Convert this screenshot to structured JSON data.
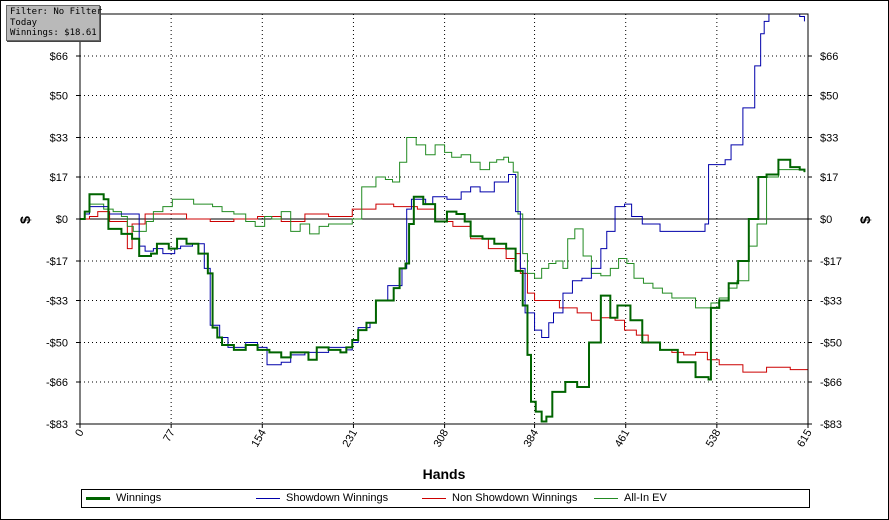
{
  "info_box": {
    "line1": "Filter: No Filter",
    "line2": "Today",
    "line3": "Winnings: $18.61"
  },
  "chart_data": {
    "type": "line",
    "xlabel": "Hands",
    "ylabel": "$",
    "xlim": [
      0,
      615
    ],
    "ylim": [
      -83,
      83
    ],
    "x_ticks": [
      0,
      77,
      154,
      231,
      308,
      384,
      461,
      538,
      615
    ],
    "y_ticks": [
      {
        "value": -83,
        "label": "-$83"
      },
      {
        "value": -66,
        "label": "-$66"
      },
      {
        "value": -50,
        "label": "-$50"
      },
      {
        "value": -33,
        "label": "-$33"
      },
      {
        "value": -17,
        "label": "-$17"
      },
      {
        "value": 0,
        "label": "$0"
      },
      {
        "value": 17,
        "label": "$17"
      },
      {
        "value": 33,
        "label": "$33"
      },
      {
        "value": 50,
        "label": "$50"
      },
      {
        "value": 66,
        "label": "$66"
      }
    ],
    "grid": true,
    "legend_position": "bottom",
    "series": [
      {
        "name": "Winnings",
        "color": "#006400",
        "width": 2,
        "points": [
          [
            0,
            0
          ],
          [
            4,
            3
          ],
          [
            8,
            10
          ],
          [
            20,
            8
          ],
          [
            24,
            -4
          ],
          [
            35,
            -6
          ],
          [
            44,
            -8
          ],
          [
            50,
            -15
          ],
          [
            60,
            -14
          ],
          [
            65,
            -10
          ],
          [
            75,
            -12
          ],
          [
            82,
            -8
          ],
          [
            90,
            -10
          ],
          [
            100,
            -14
          ],
          [
            108,
            -22
          ],
          [
            112,
            -44
          ],
          [
            116,
            -48
          ],
          [
            120,
            -51
          ],
          [
            130,
            -53
          ],
          [
            140,
            -51
          ],
          [
            150,
            -53
          ],
          [
            160,
            -54
          ],
          [
            170,
            -56
          ],
          [
            178,
            -54
          ],
          [
            185,
            -54
          ],
          [
            193,
            -57
          ],
          [
            200,
            -52
          ],
          [
            210,
            -53
          ],
          [
            220,
            -54
          ],
          [
            225,
            -52
          ],
          [
            230,
            -49
          ],
          [
            235,
            -45
          ],
          [
            242,
            -42
          ],
          [
            250,
            -33
          ],
          [
            265,
            -28
          ],
          [
            270,
            -20
          ],
          [
            275,
            -18
          ],
          [
            278,
            -2
          ],
          [
            282,
            9
          ],
          [
            290,
            6
          ],
          [
            300,
            -1
          ],
          [
            310,
            3
          ],
          [
            318,
            2
          ],
          [
            325,
            -1
          ],
          [
            330,
            -7
          ],
          [
            340,
            -8
          ],
          [
            350,
            -10
          ],
          [
            360,
            -12
          ],
          [
            368,
            -21
          ],
          [
            374,
            -35
          ],
          [
            378,
            -55
          ],
          [
            381,
            -74
          ],
          [
            385,
            -78
          ],
          [
            390,
            -82
          ],
          [
            394,
            -80
          ],
          [
            399,
            -70
          ],
          [
            410,
            -66
          ],
          [
            420,
            -68
          ],
          [
            430,
            -50
          ],
          [
            440,
            -31
          ],
          [
            448,
            -40
          ],
          [
            454,
            -35
          ],
          [
            465,
            -41
          ],
          [
            475,
            -50
          ],
          [
            490,
            -53
          ],
          [
            505,
            -58
          ],
          [
            520,
            -64
          ],
          [
            531,
            -65
          ],
          [
            533,
            -36
          ],
          [
            540,
            -33
          ],
          [
            548,
            -26
          ],
          [
            556,
            -17
          ],
          [
            565,
            0
          ],
          [
            573,
            17
          ],
          [
            580,
            18
          ],
          [
            590,
            24
          ],
          [
            600,
            21
          ],
          [
            608,
            20
          ],
          [
            612,
            19
          ]
        ]
      },
      {
        "name": "Showdown Winnings",
        "color": "#0000aa",
        "width": 1,
        "points": [
          [
            0,
            0
          ],
          [
            4,
            2
          ],
          [
            8,
            5
          ],
          [
            20,
            5
          ],
          [
            24,
            2
          ],
          [
            44,
            2
          ],
          [
            50,
            -11
          ],
          [
            55,
            -13
          ],
          [
            62,
            -12
          ],
          [
            70,
            -14
          ],
          [
            80,
            -12
          ],
          [
            85,
            -11
          ],
          [
            95,
            -10
          ],
          [
            105,
            -20
          ],
          [
            110,
            -43
          ],
          [
            118,
            -48
          ],
          [
            125,
            -52
          ],
          [
            140,
            -50
          ],
          [
            150,
            -52
          ],
          [
            158,
            -59
          ],
          [
            170,
            -58
          ],
          [
            178,
            -55
          ],
          [
            190,
            -54
          ],
          [
            200,
            -54
          ],
          [
            210,
            -52
          ],
          [
            225,
            -53
          ],
          [
            230,
            -50
          ],
          [
            235,
            -44
          ],
          [
            245,
            -42
          ],
          [
            250,
            -33
          ],
          [
            260,
            -27
          ],
          [
            272,
            -20
          ],
          [
            276,
            4
          ],
          [
            280,
            8
          ],
          [
            292,
            6
          ],
          [
            298,
            9
          ],
          [
            310,
            8
          ],
          [
            322,
            11
          ],
          [
            330,
            13
          ],
          [
            338,
            11
          ],
          [
            350,
            15
          ],
          [
            362,
            18
          ],
          [
            368,
            3
          ],
          [
            372,
            -20
          ],
          [
            376,
            -38
          ],
          [
            384,
            -45
          ],
          [
            390,
            -48
          ],
          [
            396,
            -42
          ],
          [
            400,
            -38
          ],
          [
            408,
            -30
          ],
          [
            416,
            -25
          ],
          [
            424,
            -24
          ],
          [
            432,
            -20
          ],
          [
            440,
            -12
          ],
          [
            445,
            -5
          ],
          [
            452,
            5
          ],
          [
            460,
            6
          ],
          [
            466,
            1
          ],
          [
            475,
            -2
          ],
          [
            490,
            -5
          ],
          [
            505,
            -5
          ],
          [
            520,
            -5
          ],
          [
            528,
            -2
          ],
          [
            531,
            22
          ],
          [
            545,
            24
          ],
          [
            550,
            30
          ],
          [
            560,
            45
          ],
          [
            570,
            62
          ],
          [
            575,
            75
          ],
          [
            578,
            80
          ],
          [
            582,
            83
          ],
          [
            600,
            83
          ],
          [
            608,
            82
          ],
          [
            612,
            80
          ]
        ]
      },
      {
        "name": "Non Showdown Winnings",
        "color": "#cc0000",
        "width": 1,
        "points": [
          [
            0,
            0
          ],
          [
            8,
            1
          ],
          [
            15,
            3
          ],
          [
            25,
            -1
          ],
          [
            40,
            -12
          ],
          [
            44,
            -2
          ],
          [
            55,
            2
          ],
          [
            70,
            2
          ],
          [
            90,
            0
          ],
          [
            110,
            -1
          ],
          [
            130,
            0
          ],
          [
            150,
            1
          ],
          [
            170,
            -1
          ],
          [
            190,
            2
          ],
          [
            210,
            1
          ],
          [
            230,
            4
          ],
          [
            250,
            6
          ],
          [
            265,
            5
          ],
          [
            285,
            4
          ],
          [
            300,
            -1
          ],
          [
            315,
            -3
          ],
          [
            330,
            -8
          ],
          [
            345,
            -12
          ],
          [
            360,
            -16
          ],
          [
            368,
            -14
          ],
          [
            372,
            -22
          ],
          [
            378,
            -30
          ],
          [
            384,
            -33
          ],
          [
            395,
            -33
          ],
          [
            405,
            -36
          ],
          [
            420,
            -38
          ],
          [
            432,
            -41
          ],
          [
            440,
            -40
          ],
          [
            452,
            -41
          ],
          [
            460,
            -45
          ],
          [
            470,
            -47
          ],
          [
            480,
            -50
          ],
          [
            490,
            -53
          ],
          [
            500,
            -54
          ],
          [
            510,
            -55
          ],
          [
            520,
            -54
          ],
          [
            530,
            -57
          ],
          [
            540,
            -59
          ],
          [
            560,
            -62
          ],
          [
            580,
            -60
          ],
          [
            600,
            -61
          ],
          [
            615,
            -61
          ]
        ]
      },
      {
        "name": "All-In EV",
        "color": "#228b22",
        "width": 1,
        "points": [
          [
            0,
            0
          ],
          [
            4,
            2
          ],
          [
            8,
            6
          ],
          [
            20,
            4
          ],
          [
            28,
            3
          ],
          [
            35,
            1
          ],
          [
            40,
            -3
          ],
          [
            45,
            -5
          ],
          [
            50,
            -5
          ],
          [
            56,
            -1
          ],
          [
            62,
            3
          ],
          [
            70,
            5
          ],
          [
            78,
            8
          ],
          [
            88,
            8
          ],
          [
            96,
            6
          ],
          [
            104,
            6
          ],
          [
            112,
            5
          ],
          [
            120,
            3
          ],
          [
            130,
            2
          ],
          [
            140,
            -1
          ],
          [
            148,
            -3
          ],
          [
            156,
            1
          ],
          [
            162,
            0
          ],
          [
            170,
            3
          ],
          [
            178,
            -5
          ],
          [
            186,
            -2
          ],
          [
            194,
            -6
          ],
          [
            202,
            -3
          ],
          [
            210,
            -2
          ],
          [
            222,
            -2
          ],
          [
            230,
            0
          ],
          [
            238,
            13
          ],
          [
            250,
            17
          ],
          [
            258,
            16
          ],
          [
            264,
            15
          ],
          [
            270,
            23
          ],
          [
            276,
            33
          ],
          [
            284,
            30
          ],
          [
            292,
            26
          ],
          [
            300,
            30
          ],
          [
            308,
            27
          ],
          [
            314,
            25
          ],
          [
            322,
            26
          ],
          [
            330,
            23
          ],
          [
            338,
            20
          ],
          [
            346,
            23
          ],
          [
            352,
            24
          ],
          [
            358,
            25
          ],
          [
            362,
            23
          ],
          [
            366,
            19
          ],
          [
            370,
            2
          ],
          [
            374,
            -14
          ],
          [
            378,
            -22
          ],
          [
            384,
            -24
          ],
          [
            390,
            -20
          ],
          [
            396,
            -18
          ],
          [
            402,
            -17
          ],
          [
            408,
            -20
          ],
          [
            412,
            -8
          ],
          [
            418,
            -4
          ],
          [
            425,
            -15
          ],
          [
            432,
            -22
          ],
          [
            440,
            -23
          ],
          [
            448,
            -20
          ],
          [
            455,
            -16
          ],
          [
            462,
            -18
          ],
          [
            468,
            -24
          ],
          [
            476,
            -26
          ],
          [
            484,
            -28
          ],
          [
            492,
            -30
          ],
          [
            500,
            -32
          ],
          [
            510,
            -32
          ],
          [
            520,
            -36
          ],
          [
            531,
            -36
          ],
          [
            533,
            -34
          ],
          [
            540,
            -32
          ],
          [
            548,
            -28
          ],
          [
            555,
            -25
          ],
          [
            565,
            -11
          ],
          [
            572,
            -2
          ],
          [
            580,
            17
          ],
          [
            590,
            20
          ],
          [
            600,
            20
          ],
          [
            608,
            20
          ],
          [
            612,
            19
          ]
        ]
      }
    ]
  }
}
